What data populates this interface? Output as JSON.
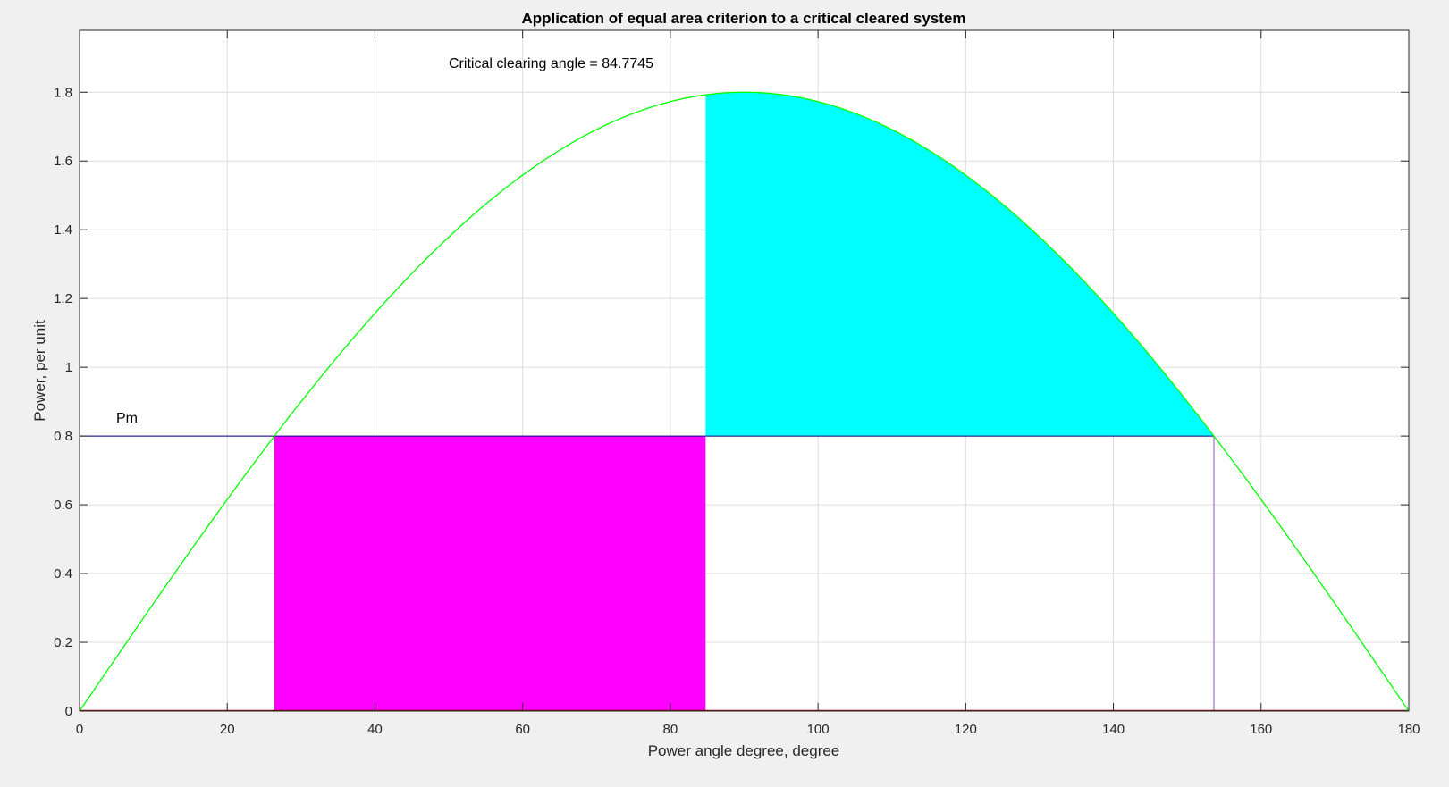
{
  "chart_data": {
    "type": "area",
    "title": "Application of equal area criterion to a critical cleared system",
    "xlabel": "Power angle degree, degree",
    "ylabel": "Power, per unit",
    "xlim": [
      0,
      180
    ],
    "ylim": [
      0,
      1.98
    ],
    "xticks": [
      0,
      20,
      40,
      60,
      80,
      100,
      120,
      140,
      160,
      180
    ],
    "yticks": [
      0,
      0.2,
      0.4,
      0.6,
      0.8,
      1,
      1.2,
      1.4,
      1.6,
      1.8
    ],
    "xtick_labels": [
      "0",
      "20",
      "40",
      "60",
      "80",
      "100",
      "120",
      "140",
      "160",
      "180"
    ],
    "ytick_labels": [
      "0",
      "0.2",
      "0.4",
      "0.6",
      "0.8",
      "1",
      "1.2",
      "1.4",
      "1.6",
      "1.8"
    ],
    "grid": true,
    "power_curve": {
      "description_formula": "Pe = Pmax * sin(delta)",
      "pmax": 1.8,
      "color": "#00ff00"
    },
    "pm": 0.8,
    "pm_label": "Pm",
    "delta0": 26.39,
    "delta_cr": 84.7745,
    "delta_max": 153.61,
    "accelerating_area_color": "#ff00ff",
    "decelerating_area_color": "#00ffff",
    "annotation": "Critical clearing angle = 84.7745",
    "colors": {
      "pm_line": "#000080",
      "delta_max_line": "#b090d0",
      "zero_line": "#8b0000"
    }
  }
}
